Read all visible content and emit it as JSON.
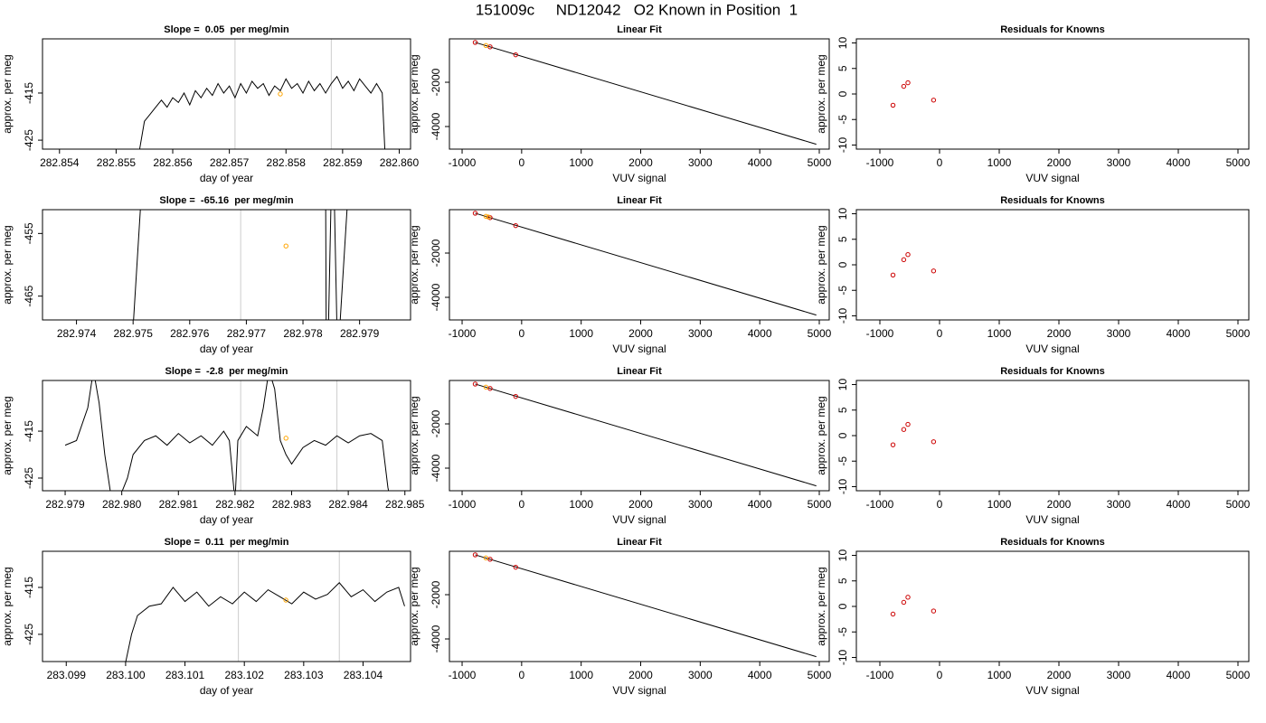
{
  "title": "151009c     ND12042   O2 Known in Position  1",
  "chart_data": [
    {
      "type": "line",
      "title": "Slope =  0.05  per meg/min",
      "xlabel": "day of year",
      "ylabel": "approx. per meg",
      "xlim": [
        282.8537,
        282.8602
      ],
      "ylim": [
        -426.9,
        -403.5
      ],
      "xticks": [
        282.854,
        282.855,
        282.856,
        282.857,
        282.858,
        282.859,
        {
          "value": 282.86,
          "label": "282.860"
        }
      ],
      "yticks": [
        -425,
        -415
      ],
      "vlines": {
        "color": "#cccccc",
        "x": [
          282.8571,
          282.8588
        ]
      },
      "series": [
        {
          "style": "line",
          "color": "#000000",
          "x": [
            282.8554,
            282.8555,
            282.8556,
            282.8557,
            282.8558,
            282.8559,
            282.856,
            282.8561,
            282.8562,
            282.8563,
            282.8564,
            282.8565,
            282.8566,
            282.8567,
            282.8568,
            282.8569,
            282.857,
            282.8571,
            282.8572,
            282.8573,
            282.8574,
            282.8575,
            282.8576,
            282.8577,
            282.8578,
            282.8579,
            282.858,
            282.8581,
            282.8582,
            282.8583,
            282.8584,
            282.8585,
            282.8586,
            282.8587,
            282.8588,
            282.8589,
            282.859,
            282.8591,
            282.8592,
            282.8593,
            282.8594,
            282.8595,
            282.8596,
            282.8597,
            282.85975
          ],
          "values": [
            -428,
            -421,
            -419.5,
            -418,
            -416.5,
            -418,
            -416,
            -417,
            -415,
            -417.5,
            -414.5,
            -416,
            -414,
            -415.5,
            -413,
            -415,
            -413.5,
            -416,
            -413,
            -415,
            -412.5,
            -414,
            -413,
            -415.5,
            -413.5,
            -414.5,
            -412,
            -414,
            -413,
            -415,
            -412.5,
            -414.5,
            -413,
            -415,
            -413,
            -411.5,
            -414,
            -412.5,
            -414.5,
            -412,
            -413.5,
            -415,
            -413,
            -415,
            -428
          ]
        },
        {
          "style": "points",
          "color": "#ffa500",
          "x": [
            282.8579
          ],
          "values": [
            -415.2
          ]
        }
      ]
    },
    {
      "type": "scatter",
      "title": "Linear Fit",
      "xlabel": "VUV signal",
      "ylabel": "approx. per meg",
      "xlim": [
        -1213,
        5167
      ],
      "ylim": [
        -5020,
        -40
      ],
      "xticks": [
        -1000,
        0,
        1000,
        2000,
        3000,
        4000,
        5000
      ],
      "yticks": [
        -2000,
        -4000
      ],
      "series": [
        {
          "style": "line",
          "color": "#000000",
          "x": [
            -780,
            4950
          ],
          "values": [
            -200,
            -4800
          ]
        },
        {
          "style": "points",
          "color": "#cc0000",
          "x": [
            -780,
            -530,
            -100
          ],
          "values": [
            -200,
            -400,
            -760
          ]
        },
        {
          "style": "points",
          "color": "#ffa500",
          "x": [
            -600
          ],
          "values": [
            -340
          ]
        }
      ]
    },
    {
      "type": "scatter",
      "title": "Residuals for Knowns",
      "xlabel": "VUV signal",
      "ylabel": "approx. per meg",
      "xlim": [
        -1394,
        5182
      ],
      "ylim": [
        -10.8,
        10.8
      ],
      "xticks": [
        -1000,
        0,
        1000,
        2000,
        3000,
        4000,
        5000
      ],
      "yticks": [
        -10,
        -5,
        0,
        5,
        10
      ],
      "series": [
        {
          "style": "points",
          "color": "#cc0000",
          "x": [
            -780,
            -600,
            -530,
            -100
          ],
          "values": [
            -2.2,
            1.5,
            2.2,
            -1.2
          ]
        }
      ]
    },
    {
      "type": "line",
      "title": "Slope =  -65.16  per meg/min",
      "xlabel": "day of year",
      "ylabel": "approx. per meg",
      "xlim": [
        282.9734,
        282.9799
      ],
      "ylim": [
        -468.8,
        -451.2
      ],
      "xticks": [
        282.974,
        282.975,
        282.976,
        282.977,
        282.978,
        282.979
      ],
      "yticks": [
        -465,
        -455
      ],
      "vlines": {
        "color": "#cccccc",
        "x": [
          282.9769
        ]
      },
      "series": [
        {
          "style": "line",
          "color": "#000000",
          "x": [
            282.975,
            282.97515,
            282.9784,
            282.97841,
            282.97845,
            282.9785,
            282.97855,
            282.9786,
            282.97865,
            282.9788
          ],
          "values": [
            -470,
            -448,
            -448,
            -470,
            -470,
            -448,
            -448,
            -470,
            -470,
            -448
          ]
        },
        {
          "style": "points",
          "color": "#ffa500",
          "x": [
            282.9777
          ],
          "values": [
            -457
          ]
        }
      ]
    },
    {
      "type": "scatter",
      "title": "Linear Fit",
      "xlabel": "VUV signal",
      "ylabel": "approx. per meg",
      "xlim": [
        -1213,
        5167
      ],
      "ylim": [
        -5020,
        -40
      ],
      "xticks": [
        -1000,
        0,
        1000,
        2000,
        3000,
        4000,
        5000
      ],
      "yticks": [
        -2000,
        -4000
      ],
      "series": [
        {
          "style": "line",
          "color": "#000000",
          "x": [
            -780,
            4950
          ],
          "values": [
            -200,
            -4800
          ]
        },
        {
          "style": "points",
          "color": "#cc0000",
          "x": [
            -780,
            -530,
            -100
          ],
          "values": [
            -200,
            -400,
            -760
          ]
        },
        {
          "style": "points",
          "color": "#ffa500",
          "x": [
            -600,
            -560
          ],
          "values": [
            -340,
            -370
          ]
        }
      ]
    },
    {
      "type": "scatter",
      "title": "Residuals for Knowns",
      "xlabel": "VUV signal",
      "ylabel": "approx. per meg",
      "xlim": [
        -1394,
        5182
      ],
      "ylim": [
        -10.8,
        10.8
      ],
      "xticks": [
        -1000,
        0,
        1000,
        2000,
        3000,
        4000,
        5000
      ],
      "yticks": [
        -10,
        -5,
        0,
        5,
        10
      ],
      "series": [
        {
          "style": "points",
          "color": "#cc0000",
          "x": [
            -780,
            -600,
            -530,
            -100
          ],
          "values": [
            -2,
            1,
            2,
            -1.2
          ]
        }
      ]
    },
    {
      "type": "line",
      "title": "Slope =  -2.8  per meg/min",
      "xlabel": "day of year",
      "ylabel": "approx. per meg",
      "xlim": [
        282.9786,
        282.9851
      ],
      "ylim": [
        -427.7,
        -404.2
      ],
      "xticks": [
        282.979,
        {
          "value": 282.98,
          "label": "282.980"
        },
        282.981,
        282.982,
        282.983,
        282.984,
        282.985
      ],
      "yticks": [
        -425,
        -415
      ],
      "vlines": {
        "color": "#cccccc",
        "x": [
          282.9821,
          282.9838
        ]
      },
      "series": [
        {
          "style": "line",
          "color": "#000000",
          "x": [
            282.979,
            282.9792,
            282.9794,
            282.9795,
            282.9796,
            282.9797,
            282.9798,
            282.9799,
            282.98,
            282.9801,
            282.9802,
            282.9804,
            282.9806,
            282.9808,
            282.981,
            282.9812,
            282.9814,
            282.9816,
            282.9818,
            282.9819,
            282.982,
            282.98205,
            282.9822,
            282.9824,
            282.9825,
            282.9826,
            282.9827,
            282.9828,
            282.9829,
            282.983,
            282.9832,
            282.9834,
            282.9836,
            282.9838,
            282.984,
            282.9842,
            282.9844,
            282.9846,
            282.9847,
            282.98475
          ],
          "values": [
            -418,
            -417,
            -410,
            -402,
            -409,
            -420,
            -428,
            -432,
            -428,
            -425,
            -420,
            -417,
            -416,
            -418,
            -415.5,
            -417.5,
            -416,
            -418,
            -415,
            -417,
            -430,
            -417,
            -414,
            -416,
            -410,
            -402,
            -406,
            -417,
            -420,
            -422,
            -418.5,
            -417,
            -418,
            -416,
            -417.5,
            -416,
            -415.5,
            -417,
            -427,
            -430
          ]
        },
        {
          "style": "points",
          "color": "#ffa500",
          "x": [
            282.9829
          ],
          "values": [
            -416.5
          ]
        }
      ]
    },
    {
      "type": "scatter",
      "title": "Linear Fit",
      "xlabel": "VUV signal",
      "ylabel": "approx. per meg",
      "xlim": [
        -1213,
        5167
      ],
      "ylim": [
        -5020,
        -40
      ],
      "xticks": [
        -1000,
        0,
        1000,
        2000,
        3000,
        4000,
        5000
      ],
      "yticks": [
        -2000,
        -4000
      ],
      "series": [
        {
          "style": "line",
          "color": "#000000",
          "x": [
            -780,
            4950
          ],
          "values": [
            -200,
            -4800
          ]
        },
        {
          "style": "points",
          "color": "#cc0000",
          "x": [
            -780,
            -530,
            -100
          ],
          "values": [
            -200,
            -400,
            -760
          ]
        },
        {
          "style": "points",
          "color": "#ffa500",
          "x": [
            -600
          ],
          "values": [
            -340
          ]
        }
      ]
    },
    {
      "type": "scatter",
      "title": "Residuals for Knowns",
      "xlabel": "VUV signal",
      "ylabel": "approx. per meg",
      "xlim": [
        -1394,
        5182
      ],
      "ylim": [
        -10.8,
        10.8
      ],
      "xticks": [
        -1000,
        0,
        1000,
        2000,
        3000,
        4000,
        5000
      ],
      "yticks": [
        -10,
        -5,
        0,
        5,
        10
      ],
      "series": [
        {
          "style": "points",
          "color": "#cc0000",
          "x": [
            -780,
            -600,
            -530,
            -100
          ],
          "values": [
            -1.8,
            1.2,
            2.2,
            -1.2
          ]
        }
      ]
    },
    {
      "type": "line",
      "title": "Slope =  0.11  per meg/min",
      "xlabel": "day of year",
      "ylabel": "approx. per meg",
      "xlim": [
        283.0986,
        283.1048
      ],
      "ylim": [
        -430.8,
        -407.3
      ],
      "xticks": [
        283.099,
        {
          "value": 283.1,
          "label": "283.100"
        },
        283.101,
        283.102,
        283.103,
        283.104
      ],
      "yticks": [
        -425,
        -415
      ],
      "vlines": {
        "color": "#cccccc",
        "x": [
          283.1019,
          283.1036
        ]
      },
      "series": [
        {
          "style": "line",
          "color": "#000000",
          "x": [
            283.1,
            283.1001,
            283.1002,
            283.1004,
            283.1006,
            283.1008,
            283.101,
            283.1012,
            283.1014,
            283.1016,
            283.1018,
            283.102,
            283.1022,
            283.1024,
            283.1026,
            283.1028,
            283.103,
            283.1032,
            283.1034,
            283.1036,
            283.1038,
            283.104,
            283.1042,
            283.1044,
            283.1046,
            283.1047
          ],
          "values": [
            -431,
            -425,
            -421,
            -419,
            -418.5,
            -415,
            -418,
            -416,
            -419,
            -417,
            -418.5,
            -416,
            -418,
            -415.5,
            -417,
            -418.5,
            -416,
            -417.5,
            -416.5,
            -414,
            -417,
            -415.5,
            -418,
            -416,
            -415,
            -419
          ]
        },
        {
          "style": "points",
          "color": "#ffa500",
          "x": [
            283.1027
          ],
          "values": [
            -417.7
          ]
        }
      ]
    },
    {
      "type": "scatter",
      "title": "Linear Fit",
      "xlabel": "VUV signal",
      "ylabel": "approx. per meg",
      "xlim": [
        -1213,
        5167
      ],
      "ylim": [
        -5020,
        -40
      ],
      "xticks": [
        -1000,
        0,
        1000,
        2000,
        3000,
        4000,
        5000
      ],
      "yticks": [
        -2000,
        -4000
      ],
      "series": [
        {
          "style": "line",
          "color": "#000000",
          "x": [
            -780,
            4950
          ],
          "values": [
            -200,
            -4800
          ]
        },
        {
          "style": "points",
          "color": "#cc0000",
          "x": [
            -780,
            -530,
            -100
          ],
          "values": [
            -200,
            -400,
            -760
          ]
        },
        {
          "style": "points",
          "color": "#ffa500",
          "x": [
            -600
          ],
          "values": [
            -340
          ]
        }
      ]
    },
    {
      "type": "scatter",
      "title": "Residuals for Knowns",
      "xlabel": "VUV signal",
      "ylabel": "approx. per meg",
      "xlim": [
        -1394,
        5182
      ],
      "ylim": [
        -10.8,
        10.8
      ],
      "xticks": [
        -1000,
        0,
        1000,
        2000,
        3000,
        4000,
        5000
      ],
      "yticks": [
        -10,
        -5,
        0,
        5,
        10
      ],
      "series": [
        {
          "style": "points",
          "color": "#cc0000",
          "x": [
            -780,
            -600,
            -530,
            -100
          ],
          "values": [
            -1.5,
            0.8,
            1.8,
            -0.9
          ]
        }
      ]
    }
  ]
}
